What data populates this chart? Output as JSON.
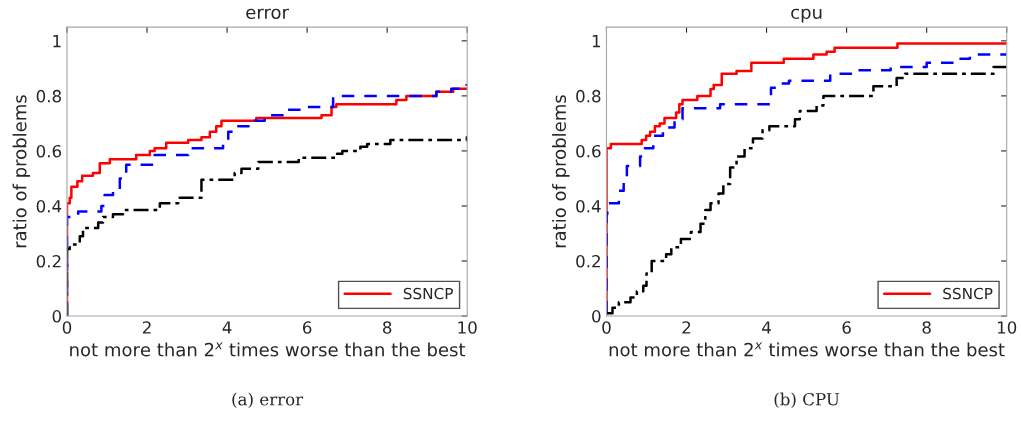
{
  "chart_data": [
    {
      "type": "step",
      "title": "error",
      "xlabel": "not more than 2$^{x}$ times worse than the best",
      "ylabel": "ratio of problems",
      "xlim": [
        0,
        10
      ],
      "ylim": [
        0,
        1.05
      ],
      "xticks": [
        0,
        2,
        4,
        6,
        8,
        10
      ],
      "yticks": [
        0,
        0.2,
        0.4,
        0.6,
        0.8,
        1
      ],
      "grid": false,
      "legend": "bottom right",
      "annotations": [
        "(a) error"
      ],
      "series": [
        {
          "name": "SSNCP",
          "color": "#ff0000",
          "line_style": "solid",
          "x": [
            0,
            0,
            0.07,
            0.11,
            0.26,
            0.38,
            0.65,
            0.82,
            1.07,
            1.73,
            2.07,
            2.19,
            2.48,
            3.03,
            3.36,
            3.57,
            3.73,
            3.86,
            4.73,
            6.36,
            6.61,
            6.73,
            8.23,
            8.48,
            9.23,
            9.65,
            10
          ],
          "values": [
            0,
            0.41,
            0.43,
            0.47,
            0.49,
            0.51,
            0.52,
            0.555,
            0.57,
            0.585,
            0.6,
            0.61,
            0.63,
            0.64,
            0.65,
            0.67,
            0.69,
            0.71,
            0.72,
            0.73,
            0.76,
            0.77,
            0.785,
            0.8,
            0.815,
            0.826,
            0.826
          ]
        },
        {
          "color": "#0000ff",
          "line_style": "dashed",
          "x": [
            0,
            0,
            0.28,
            0.86,
            0.94,
            1.15,
            1.32,
            1.48,
            2.19,
            3.03,
            3.9,
            4.03,
            4.28,
            4.69,
            4.94,
            5.48,
            5.9,
            6.65,
            9.23,
            9.6,
            9.98,
            10
          ],
          "values": [
            0,
            0.36,
            0.38,
            0.4,
            0.44,
            0.46,
            0.5,
            0.55,
            0.585,
            0.61,
            0.63,
            0.67,
            0.69,
            0.71,
            0.73,
            0.75,
            0.76,
            0.8,
            0.815,
            0.826,
            0.84,
            0.84
          ]
        },
        {
          "color": "#000000",
          "line_style": "dashdot",
          "x": [
            0,
            0,
            0.07,
            0.32,
            0.4,
            0.78,
            0.9,
            1.15,
            1.4,
            2.32,
            2.78,
            3.36,
            4.19,
            4.36,
            4.78,
            5.79,
            6.75,
            6.88,
            7.33,
            7.5,
            8.08,
            9.99,
            10
          ],
          "values": [
            0,
            0.244,
            0.26,
            0.29,
            0.32,
            0.34,
            0.36,
            0.37,
            0.385,
            0.41,
            0.43,
            0.495,
            0.52,
            0.535,
            0.56,
            0.575,
            0.59,
            0.6,
            0.615,
            0.625,
            0.64,
            0.65,
            0.65
          ]
        }
      ]
    },
    {
      "type": "step",
      "title": "cpu",
      "xlabel": "not more than 2$^{x}$ times worse than the best",
      "ylabel": "ratio of problems",
      "xlim": [
        0,
        10
      ],
      "ylim": [
        0,
        1.05
      ],
      "xticks": [
        0,
        2,
        4,
        6,
        8,
        10
      ],
      "yticks": [
        0,
        0.2,
        0.4,
        0.6,
        0.8,
        1
      ],
      "grid": false,
      "legend": "bottom right",
      "annotations": [
        "(b) CPU"
      ],
      "series": [
        {
          "name": "SSNCP",
          "color": "#ff0000",
          "line_style": "solid",
          "x": [
            0,
            0,
            0.11,
            0.88,
            0.99,
            1.09,
            1.21,
            1.33,
            1.45,
            1.74,
            1.82,
            1.9,
            2.27,
            2.6,
            2.68,
            2.88,
            3.25,
            3.62,
            4.43,
            5.17,
            5.5,
            5.7,
            7.27,
            10
          ],
          "values": [
            0.01,
            0.61,
            0.625,
            0.64,
            0.655,
            0.67,
            0.69,
            0.7,
            0.72,
            0.74,
            0.77,
            0.785,
            0.8,
            0.825,
            0.84,
            0.88,
            0.89,
            0.92,
            0.935,
            0.95,
            0.96,
            0.975,
            0.99,
            0.99
          ]
        },
        {
          "color": "#0000ff",
          "line_style": "dashed",
          "x": [
            0,
            0,
            0.02,
            0.31,
            0.43,
            0.51,
            0.84,
            0.96,
            1.17,
            1.41,
            1.7,
            1.9,
            2.84,
            4.11,
            4.27,
            4.56,
            5.59,
            6.26,
            7.1,
            8.0,
            8.75,
            9.08,
            10
          ],
          "values": [
            0.01,
            0.37,
            0.41,
            0.455,
            0.5,
            0.545,
            0.58,
            0.61,
            0.655,
            0.685,
            0.715,
            0.755,
            0.77,
            0.83,
            0.845,
            0.855,
            0.88,
            0.893,
            0.905,
            0.92,
            0.935,
            0.95,
            0.95
          ]
        },
        {
          "color": "#000000",
          "line_style": "dashdot",
          "x": [
            0,
            0.15,
            0.31,
            0.6,
            0.76,
            0.92,
            1.0,
            1.13,
            1.49,
            1.62,
            1.86,
            2.11,
            2.35,
            2.47,
            2.6,
            2.8,
            2.92,
            3.09,
            3.25,
            3.45,
            3.66,
            3.9,
            4.07,
            4.71,
            4.83,
            5.25,
            5.42,
            6.67,
            7.25,
            7.46,
            9.67,
            10
          ],
          "values": [
            0.01,
            0.03,
            0.05,
            0.067,
            0.09,
            0.11,
            0.155,
            0.2,
            0.225,
            0.25,
            0.28,
            0.305,
            0.335,
            0.385,
            0.41,
            0.445,
            0.48,
            0.54,
            0.58,
            0.61,
            0.645,
            0.675,
            0.69,
            0.715,
            0.745,
            0.765,
            0.8,
            0.835,
            0.865,
            0.88,
            0.905,
            0.905
          ]
        }
      ]
    }
  ]
}
